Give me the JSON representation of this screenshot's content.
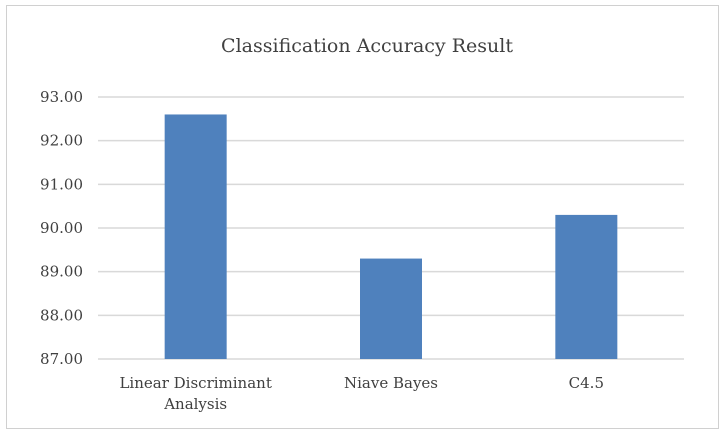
{
  "chart_data": {
    "type": "bar",
    "title": "Classification Accuracy Result",
    "categories": [
      [
        "Linear Discriminant",
        "Analysis"
      ],
      [
        "Niave Bayes"
      ],
      [
        "C4.5"
      ]
    ],
    "values": [
      92.6,
      89.3,
      90.3
    ],
    "ylim": [
      87,
      93
    ],
    "yticks": [
      "93.00",
      "92.00",
      "91.00",
      "90.00",
      "89.00",
      "88.00",
      "87.00"
    ],
    "ytick_values": [
      93,
      92,
      91,
      90,
      89,
      88,
      87
    ],
    "grid": true,
    "legend": "none",
    "bar_color": "#4f81bd"
  }
}
